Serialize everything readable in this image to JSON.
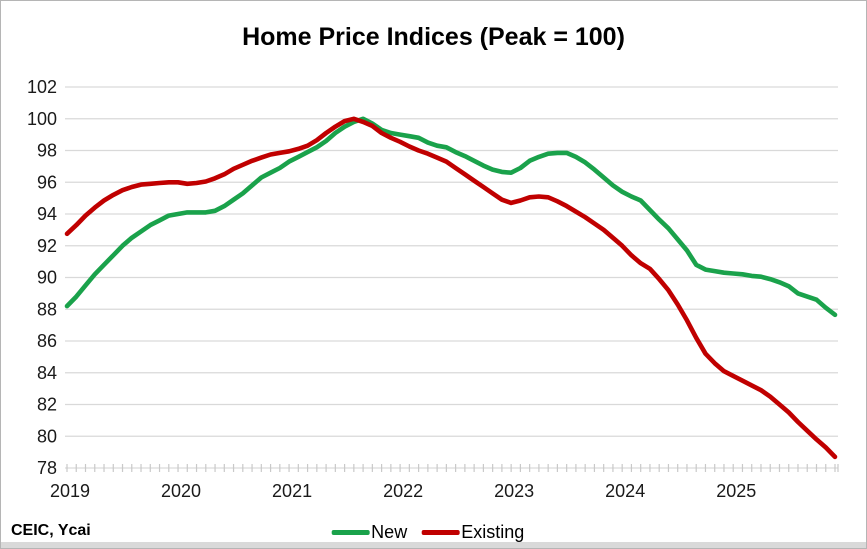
{
  "title": "Home Price Indices (Peak = 100)",
  "source_note": "CEIC, Ycai",
  "colors": {
    "new_series": "#1aa24b",
    "existing_series": "#c00000",
    "gridline": "#d9d9d9",
    "axis_tick": "#c9c9c9",
    "label_text": "#1a1a1a",
    "bottom_strip": "#d9d9d9"
  },
  "legend": {
    "new_label": "New",
    "existing_label": "Existing"
  },
  "chart_data": {
    "type": "line",
    "title": "Home Price Indices (Peak = 100)",
    "xlabel": "",
    "ylabel": "",
    "x_unit": "month",
    "x_start": "2019-01",
    "x_end": "2025-12",
    "x_tick_labels": [
      "2019",
      "2020",
      "2021",
      "2022",
      "2023",
      "2024",
      "2025"
    ],
    "y_ticks": [
      78,
      80,
      82,
      84,
      86,
      88,
      90,
      92,
      94,
      96,
      98,
      100,
      102
    ],
    "ylim": [
      78,
      102
    ],
    "grid": "horizontal",
    "legend_position": "bottom",
    "series": [
      {
        "name": "New",
        "values": [
          88.2,
          88.8,
          89.5,
          90.2,
          90.8,
          91.4,
          92.0,
          92.5,
          92.9,
          93.3,
          93.6,
          93.9,
          94.0,
          94.1,
          94.1,
          94.1,
          94.2,
          94.5,
          94.9,
          95.3,
          95.8,
          96.3,
          96.6,
          96.9,
          97.3,
          97.6,
          97.9,
          98.2,
          98.6,
          99.1,
          99.5,
          99.8,
          100.0,
          99.7,
          99.3,
          99.1,
          99.0,
          98.9,
          98.8,
          98.5,
          98.3,
          98.2,
          97.9,
          97.65,
          97.35,
          97.05,
          96.8,
          96.65,
          96.6,
          96.9,
          97.35,
          97.6,
          97.8,
          97.85,
          97.85,
          97.6,
          97.25,
          96.8,
          96.3,
          95.8,
          95.4,
          95.1,
          94.85,
          94.25,
          93.65,
          93.1,
          92.4,
          91.7,
          90.8,
          90.5,
          90.4,
          90.3,
          90.25,
          90.2,
          90.1,
          90.05,
          89.9,
          89.7,
          89.45,
          89.0,
          88.8,
          88.6,
          88.1,
          87.65
        ]
      },
      {
        "name": "Existing",
        "values": [
          92.75,
          93.3,
          93.9,
          94.4,
          94.85,
          95.2,
          95.5,
          95.7,
          95.85,
          95.9,
          95.95,
          96.0,
          96.0,
          95.9,
          95.95,
          96.05,
          96.25,
          96.5,
          96.85,
          97.1,
          97.35,
          97.55,
          97.75,
          97.85,
          97.95,
          98.1,
          98.3,
          98.65,
          99.1,
          99.5,
          99.85,
          100.0,
          99.8,
          99.55,
          99.1,
          98.8,
          98.55,
          98.25,
          98.0,
          97.8,
          97.55,
          97.3,
          96.9,
          96.5,
          96.1,
          95.7,
          95.3,
          94.9,
          94.7,
          94.85,
          95.05,
          95.1,
          95.05,
          94.8,
          94.5,
          94.15,
          93.8,
          93.4,
          93.0,
          92.5,
          92.0,
          91.4,
          90.9,
          90.55,
          89.9,
          89.2,
          88.3,
          87.3,
          86.2,
          85.2,
          84.6,
          84.1,
          83.8,
          83.5,
          83.2,
          82.9,
          82.5,
          82.0,
          81.5,
          80.9,
          80.35,
          79.8,
          79.3,
          78.7
        ]
      }
    ]
  }
}
